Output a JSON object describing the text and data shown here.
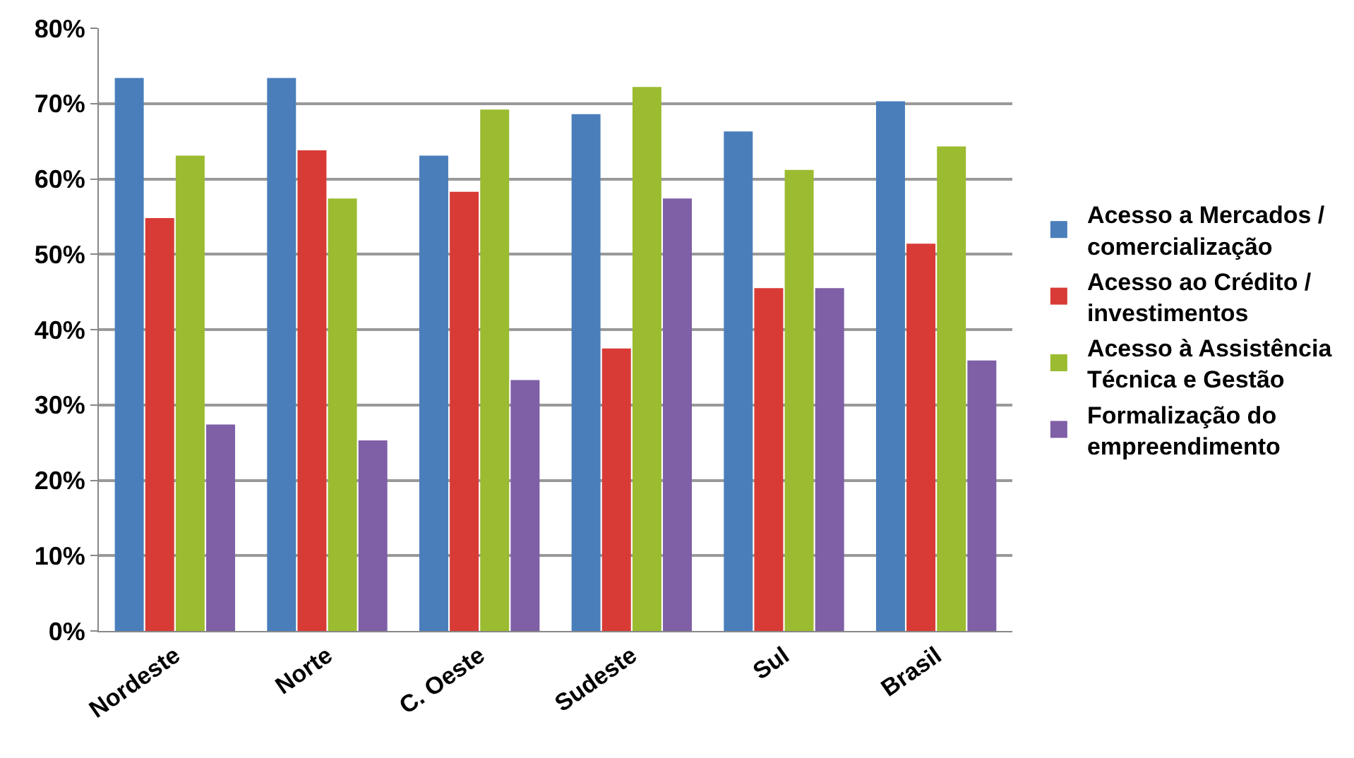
{
  "chart_data": {
    "type": "bar",
    "categories": [
      "Nordeste",
      "Norte",
      "C. Oeste",
      "Sudeste",
      "Sul",
      "Brasil"
    ],
    "series": [
      {
        "name": "Acesso a Mercados / comercialização",
        "color": "#4a7ebb",
        "values": [
          73.4,
          73.4,
          63.1,
          68.6,
          66.3,
          70.3
        ]
      },
      {
        "name": "Acesso ao Crédito / investimentos",
        "color": "#d83b35",
        "values": [
          54.8,
          63.8,
          58.3,
          37.5,
          45.5,
          51.4
        ]
      },
      {
        "name": "Acesso à Assistência Técnica e Gestão",
        "color": "#9bbb30",
        "values": [
          63.1,
          57.4,
          69.2,
          72.2,
          61.2,
          64.3
        ]
      },
      {
        "name": "Formalização do empreendimento",
        "color": "#7f5fa6",
        "values": [
          27.4,
          25.3,
          33.3,
          57.4,
          45.5,
          35.9
        ]
      }
    ],
    "ylim": [
      0,
      80
    ],
    "yticks": [
      {
        "value": 0,
        "label": "0%"
      },
      {
        "value": 10,
        "label": "10%"
      },
      {
        "value": 20,
        "label": "20%"
      },
      {
        "value": 30,
        "label": "30%"
      },
      {
        "value": 40,
        "label": "40%"
      },
      {
        "value": 50,
        "label": "50%"
      },
      {
        "value": 60,
        "label": "60%"
      },
      {
        "value": 70,
        "label": "70%"
      },
      {
        "value": 80,
        "label": "80%"
      }
    ],
    "grid": "y",
    "legend": "right"
  }
}
